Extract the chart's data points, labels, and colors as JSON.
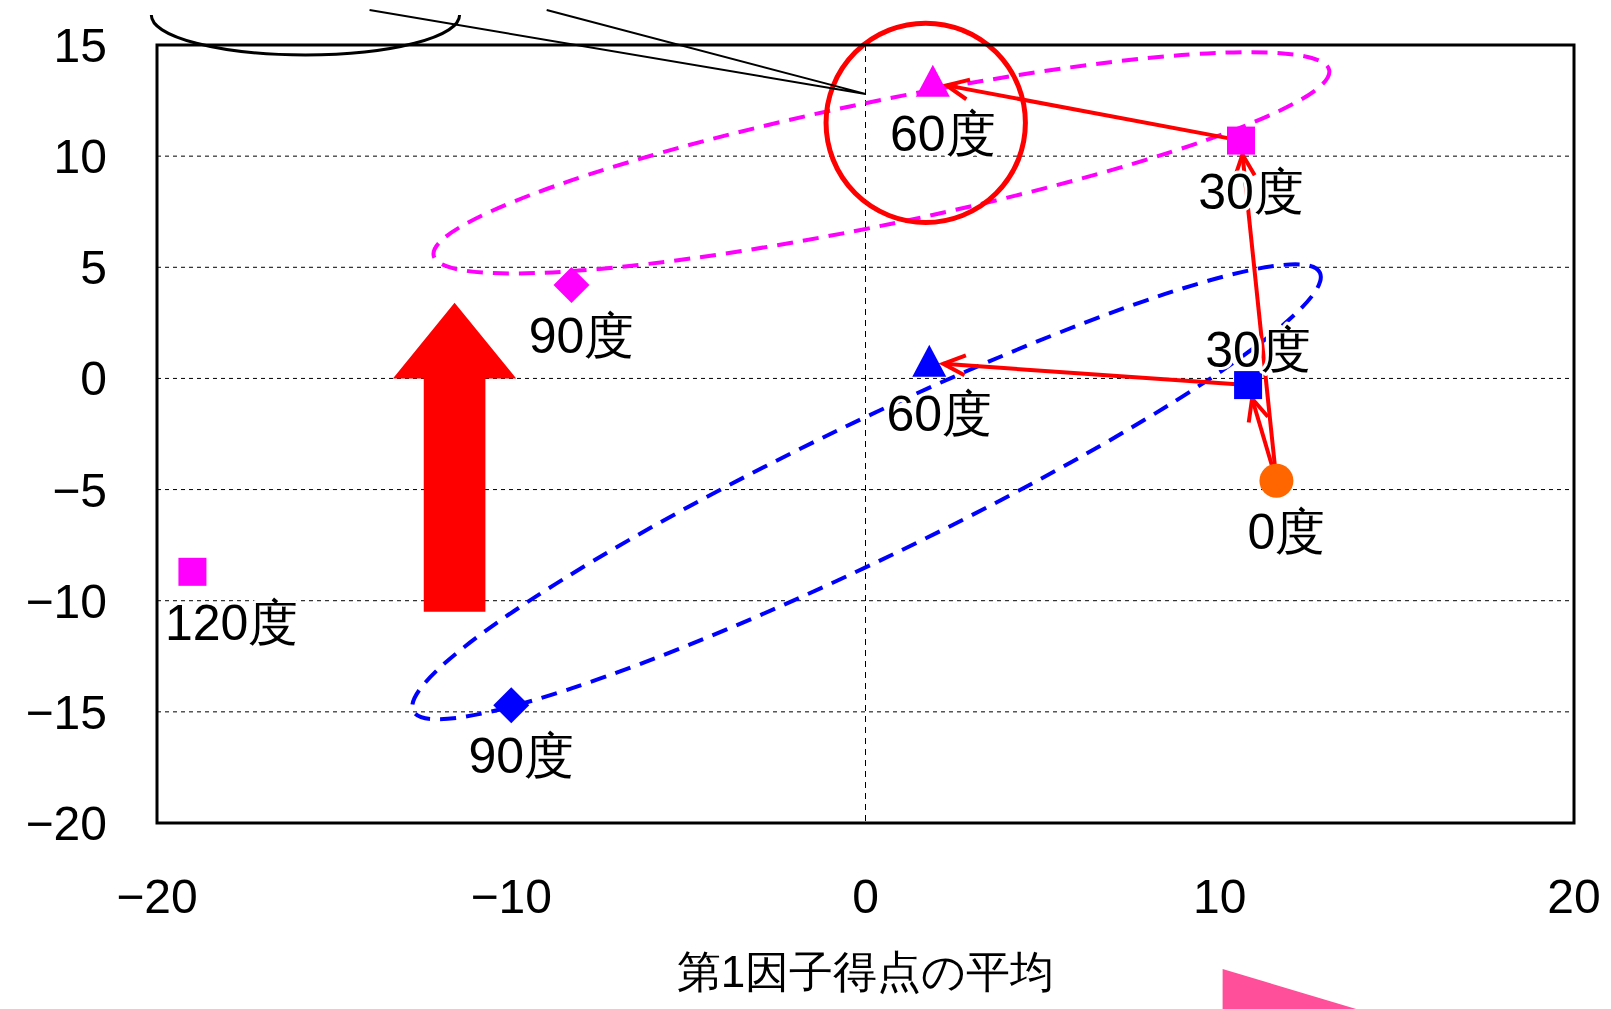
{
  "chart_data": {
    "type": "scatter",
    "xlabel": "第1因子得点の平均",
    "xlim": [
      -20,
      20
    ],
    "xticks": [
      -20,
      -10,
      0,
      10,
      20
    ],
    "ylim": [
      -20,
      15
    ],
    "yticks": [
      -20,
      -15,
      -10,
      -5,
      0,
      5,
      10,
      15
    ],
    "grid": "y",
    "ref_lines": [
      {
        "axis": "x",
        "value": 0,
        "color": "#000000",
        "line_style": "dashed"
      }
    ],
    "series": [
      {
        "color": "#ff6600",
        "marker": "circle",
        "x": [
          11.6
        ],
        "values": [
          -4.6
        ]
      },
      {
        "color": "#0000ff",
        "marker": "square",
        "x": [
          10.8
        ],
        "values": [
          -0.3
        ]
      },
      {
        "color": "#0000ff",
        "marker": "triangle",
        "x": [
          1.8
        ],
        "values": [
          0.7
        ]
      },
      {
        "color": "#0000ff",
        "marker": "diamond",
        "x": [
          -10.0
        ],
        "values": [
          -14.7
        ]
      },
      {
        "color": "#ff00ff",
        "marker": "square",
        "x": [
          10.6
        ],
        "values": [
          10.7
        ]
      },
      {
        "color": "#ff00ff",
        "marker": "triangle",
        "x": [
          1.9
        ],
        "values": [
          13.3
        ]
      },
      {
        "color": "#ff00ff",
        "marker": "diamond",
        "x": [
          -8.3
        ],
        "values": [
          4.2
        ]
      },
      {
        "color": "#ff00ff",
        "marker": "square",
        "x": [
          -19.0
        ],
        "values": [
          -8.7
        ]
      }
    ],
    "annotations": [
      {
        "text": "0度",
        "x": 11.6,
        "y": -4.6
      },
      {
        "text": "30度",
        "x": 10.8,
        "y": -0.3
      },
      {
        "text": "60度",
        "x": 1.8,
        "y": 0.7
      },
      {
        "text": "90度",
        "x": -10.0,
        "y": -14.7
      },
      {
        "text": "30度",
        "x": 10.6,
        "y": 10.7
      },
      {
        "text": "60度",
        "x": 1.9,
        "y": 13.3
      },
      {
        "text": "90度",
        "x": -8.3,
        "y": 4.2
      },
      {
        "text": "120度",
        "x": -19.0,
        "y": -8.7
      }
    ]
  }
}
